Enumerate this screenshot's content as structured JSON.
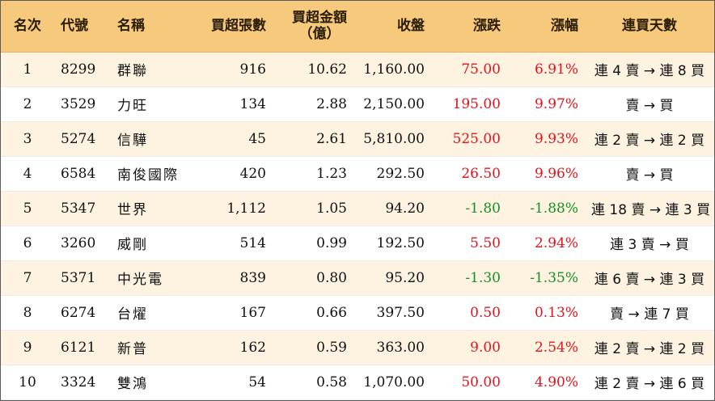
{
  "headers": {
    "rank": "名次",
    "code": "代號",
    "name": "名稱",
    "lots": "買超張數",
    "amount_line1": "買超金額",
    "amount_line2": "（億）",
    "close": "收盤",
    "change": "漲跌",
    "pct": "漲幅",
    "days": "連買天數"
  },
  "rows": [
    {
      "rank": "1",
      "code": "8299",
      "name": "群聯",
      "lots": "916",
      "amount": "10.62",
      "close": "1,160.00",
      "change": "75.00",
      "pct": "6.91%",
      "days": "連 4 賣 → 連 8 買",
      "dir": "up"
    },
    {
      "rank": "2",
      "code": "3529",
      "name": "力旺",
      "lots": "134",
      "amount": "2.88",
      "close": "2,150.00",
      "change": "195.00",
      "pct": "9.97%",
      "days": "賣 → 買",
      "dir": "up"
    },
    {
      "rank": "3",
      "code": "5274",
      "name": "信驊",
      "lots": "45",
      "amount": "2.61",
      "close": "5,810.00",
      "change": "525.00",
      "pct": "9.93%",
      "days": "連 2 賣 → 連 2 買",
      "dir": "up"
    },
    {
      "rank": "4",
      "code": "6584",
      "name": "南俊國際",
      "lots": "420",
      "amount": "1.23",
      "close": "292.50",
      "change": "26.50",
      "pct": "9.96%",
      "days": "賣 → 買",
      "dir": "up"
    },
    {
      "rank": "5",
      "code": "5347",
      "name": "世界",
      "lots": "1,112",
      "amount": "1.05",
      "close": "94.20",
      "change": "-1.80",
      "pct": "-1.88%",
      "days": "連 18 賣 → 連 3 買",
      "dir": "down"
    },
    {
      "rank": "6",
      "code": "3260",
      "name": "威剛",
      "lots": "514",
      "amount": "0.99",
      "close": "192.50",
      "change": "5.50",
      "pct": "2.94%",
      "days": "連 3 賣 → 買",
      "dir": "up"
    },
    {
      "rank": "7",
      "code": "5371",
      "name": "中光電",
      "lots": "839",
      "amount": "0.80",
      "close": "95.20",
      "change": "-1.30",
      "pct": "-1.35%",
      "days": "連 6 賣 → 連 3 買",
      "dir": "down"
    },
    {
      "rank": "8",
      "code": "6274",
      "name": "台燿",
      "lots": "167",
      "amount": "0.66",
      "close": "397.50",
      "change": "0.50",
      "pct": "0.13%",
      "days": "賣 → 連 7 買",
      "dir": "up"
    },
    {
      "rank": "9",
      "code": "6121",
      "name": "新普",
      "lots": "162",
      "amount": "0.59",
      "close": "363.00",
      "change": "9.00",
      "pct": "2.54%",
      "days": "連 2 賣 → 連 2 買",
      "dir": "up"
    },
    {
      "rank": "10",
      "code": "3324",
      "name": "雙鴻",
      "lots": "54",
      "amount": "0.58",
      "close": "1,070.00",
      "change": "50.00",
      "pct": "4.90%",
      "days": "連 2 賣 → 連 6 買",
      "dir": "up"
    }
  ],
  "colors": {
    "header_bg": "#f7c97c",
    "odd_row_bg": "#fdf3e0",
    "up": "#e0141e",
    "down": "#12902a"
  }
}
